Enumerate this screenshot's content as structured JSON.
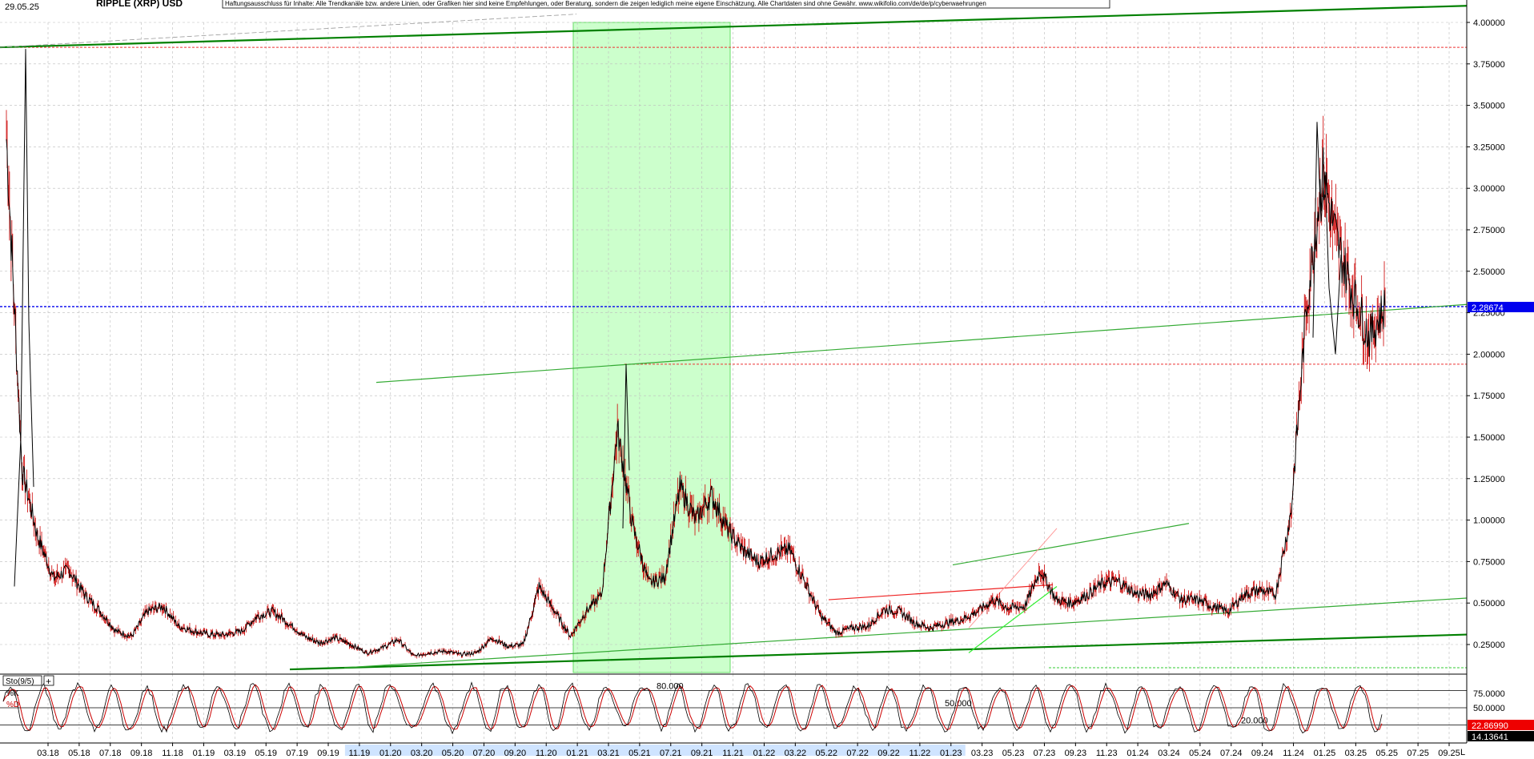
{
  "chart_data": {
    "type": "line",
    "title": "RIPPLE (XRP) USD",
    "date_label": "29.05.25",
    "disclaimer": "Haftungsausschluss für Inhalte: Alle Trendkanäle bzw. andere Linien, oder Grafiken hier sind keine Empfehlungen, oder Beratung, sondern die zeigen lediglich meine eigene Einschätzung. Alle Chartdaten sind ohne Gewähr.  www.wikifolio.com/de/de/p/cyberwaehrungen",
    "ylim": [
      0.1,
      4.1
    ],
    "y_ticks": [
      0.25,
      0.5,
      0.75,
      1.0,
      1.25,
      1.5,
      1.75,
      2.0,
      2.25,
      2.5,
      2.75,
      3.0,
      3.25,
      3.5,
      3.75,
      4.0
    ],
    "y_tick_labels": [
      "0.25000",
      "0.50000",
      "0.75000",
      "1.00000",
      "1.25000",
      "1.50000",
      "1.75000",
      "2.00000",
      "2.25000",
      "2.50000",
      "2.75000",
      "3.00000",
      "3.25000",
      "3.50000",
      "3.75000",
      "4.00000"
    ],
    "last_price_label": "2.28674",
    "last_price": 2.28674,
    "x_tick_labels": [
      "03.18",
      "05.18",
      "07.18",
      "09.18",
      "11.18",
      "01.19",
      "03.19",
      "05.19",
      "07.19",
      "09.19",
      "11.19",
      "01.20",
      "03.20",
      "05.20",
      "07.20",
      "09.20",
      "11.20",
      "01.21",
      "03.21",
      "05.21",
      "07.21",
      "09.21",
      "11.21",
      "01.22",
      "03.22",
      "05.22",
      "07.22",
      "09.22",
      "11.22",
      "01.23",
      "03.23",
      "05.23",
      "07.23",
      "09.23",
      "11.23",
      "01.24",
      "03.24",
      "05.24",
      "07.24",
      "09.24",
      "11.24",
      "01.25",
      "03.25",
      "05.25",
      "07.25",
      "09.25"
    ],
    "x_highlight_labels": [
      "11.19",
      "01.20",
      "03.20",
      "05.20",
      "07.20",
      "09.20",
      "11.20",
      "01.21",
      "03.21",
      "05.21",
      "07.21",
      "09.21",
      "11.21",
      "01.22",
      "03.22",
      "05.22",
      "07.22",
      "09.22",
      "11.22",
      "01.23"
    ],
    "x_end_label": "L",
    "series": [
      {
        "name": "",
        "x": [
          "01.18",
          "02.18",
          "03.18",
          "04.18",
          "05.18",
          "06.18",
          "07.18",
          "08.18",
          "09.18",
          "10.18",
          "11.18",
          "12.18",
          "01.19",
          "02.19",
          "03.19",
          "04.19",
          "05.19",
          "06.19",
          "07.19",
          "08.19",
          "09.19",
          "10.19",
          "11.19",
          "12.19",
          "01.20",
          "02.20",
          "03.20",
          "04.20",
          "05.20",
          "06.20",
          "07.20",
          "08.20",
          "09.20",
          "10.20",
          "11.20",
          "12.20",
          "01.21",
          "02.21",
          "03.21",
          "04.21",
          "05.21",
          "06.21",
          "07.21",
          "08.21",
          "09.21",
          "10.21",
          "11.21",
          "12.21",
          "01.22",
          "02.22",
          "03.22",
          "04.22",
          "05.22",
          "06.22",
          "07.22",
          "08.22",
          "09.22",
          "10.22",
          "11.22",
          "12.22",
          "01.23",
          "02.23",
          "03.23",
          "04.23",
          "05.23",
          "06.23",
          "07.23",
          "08.23",
          "09.23",
          "10.23",
          "11.23",
          "12.23",
          "01.24",
          "02.24",
          "03.24",
          "04.24",
          "05.24",
          "06.24",
          "07.24",
          "08.24",
          "09.24",
          "10.24",
          "11.24",
          "12.24",
          "01.25",
          "02.25",
          "03.25",
          "04.25",
          "05.25"
        ],
        "values": [
          3.3,
          1.3,
          0.9,
          0.65,
          0.7,
          0.55,
          0.45,
          0.33,
          0.3,
          0.45,
          0.48,
          0.36,
          0.33,
          0.31,
          0.31,
          0.33,
          0.42,
          0.45,
          0.38,
          0.3,
          0.26,
          0.29,
          0.25,
          0.2,
          0.23,
          0.28,
          0.18,
          0.2,
          0.21,
          0.19,
          0.2,
          0.29,
          0.24,
          0.25,
          0.6,
          0.45,
          0.3,
          0.45,
          0.55,
          1.55,
          0.95,
          0.62,
          0.65,
          1.2,
          1.0,
          1.15,
          0.95,
          0.82,
          0.75,
          0.8,
          0.82,
          0.62,
          0.42,
          0.32,
          0.35,
          0.36,
          0.46,
          0.45,
          0.38,
          0.35,
          0.38,
          0.4,
          0.45,
          0.52,
          0.47,
          0.48,
          0.7,
          0.52,
          0.5,
          0.55,
          0.62,
          0.63,
          0.56,
          0.55,
          0.62,
          0.52,
          0.52,
          0.48,
          0.45,
          0.55,
          0.58,
          0.55,
          1.05,
          2.3,
          3.1,
          2.65,
          2.35,
          2.1,
          2.29
        ]
      }
    ],
    "colors": {
      "price": "#000000",
      "price_wick": "#cc0000",
      "trend_strong": "#008000",
      "trend_light": "#33aa33",
      "highlight_zone": "#ccffcc",
      "dashed_red": "#ee3333",
      "dashed_blue": "#0000ee",
      "last_price_bg": "#0000ee"
    },
    "horizontal_levels": [
      {
        "value": 3.85,
        "color": "red"
      },
      {
        "value": 2.28674,
        "color": "blue"
      },
      {
        "value": 1.94,
        "color": "red"
      },
      {
        "value": 0.1,
        "color": "green"
      }
    ],
    "stochastic": {
      "label": "Sto(9/5)",
      "k_label": "%K",
      "d_label": "%D",
      "ylim": [
        0,
        100
      ],
      "levels_labels": [
        "80.000",
        "50.000",
        "20.000"
      ],
      "y_tick_labels": [
        "75.0000",
        "50.0000"
      ],
      "k_last_label": "22.86990",
      "d_last_label": "14.13641",
      "k_last": 22.8699,
      "d_last": 14.13641
    }
  }
}
